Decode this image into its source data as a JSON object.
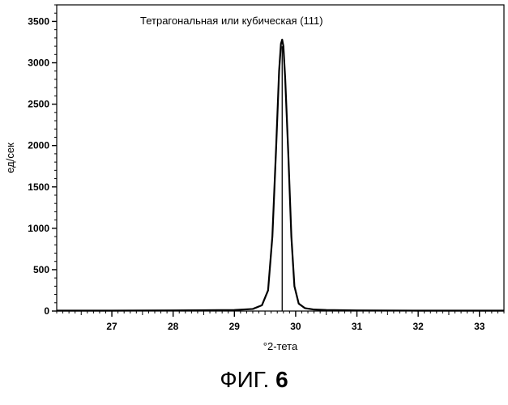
{
  "chart_data": {
    "type": "line",
    "title": "",
    "xlabel": "°2-тета",
    "ylabel": "ед/сек",
    "xlim": [
      26.1,
      33.4
    ],
    "ylim": [
      0,
      3700
    ],
    "x_ticks": [
      27,
      28,
      29,
      30,
      31,
      32,
      33
    ],
    "y_ticks": [
      0,
      500,
      1000,
      1500,
      2000,
      2500,
      3000,
      3500
    ],
    "grid": false,
    "annotations": [
      {
        "text": "Тетрагональная или кубическая (111)"
      }
    ],
    "peak_markers": [
      {
        "x": 29.78,
        "y_top": 3200
      }
    ],
    "series": [
      {
        "x": [
          26.1,
          27.0,
          28.0,
          29.0,
          29.3,
          29.45,
          29.55,
          29.62,
          29.68,
          29.73,
          29.76,
          29.78,
          29.8,
          29.83,
          29.88,
          29.93,
          29.98,
          30.05,
          30.15,
          30.3,
          30.5,
          31.0,
          32.0,
          33.0,
          33.4
        ],
        "y": [
          5,
          5,
          8,
          12,
          25,
          70,
          250,
          900,
          1950,
          2900,
          3230,
          3280,
          3200,
          2800,
          1900,
          900,
          300,
          90,
          35,
          18,
          12,
          8,
          5,
          5,
          5
        ]
      }
    ]
  },
  "figure": {
    "caption_prefix": "ФИГ.",
    "caption_number": "6"
  }
}
